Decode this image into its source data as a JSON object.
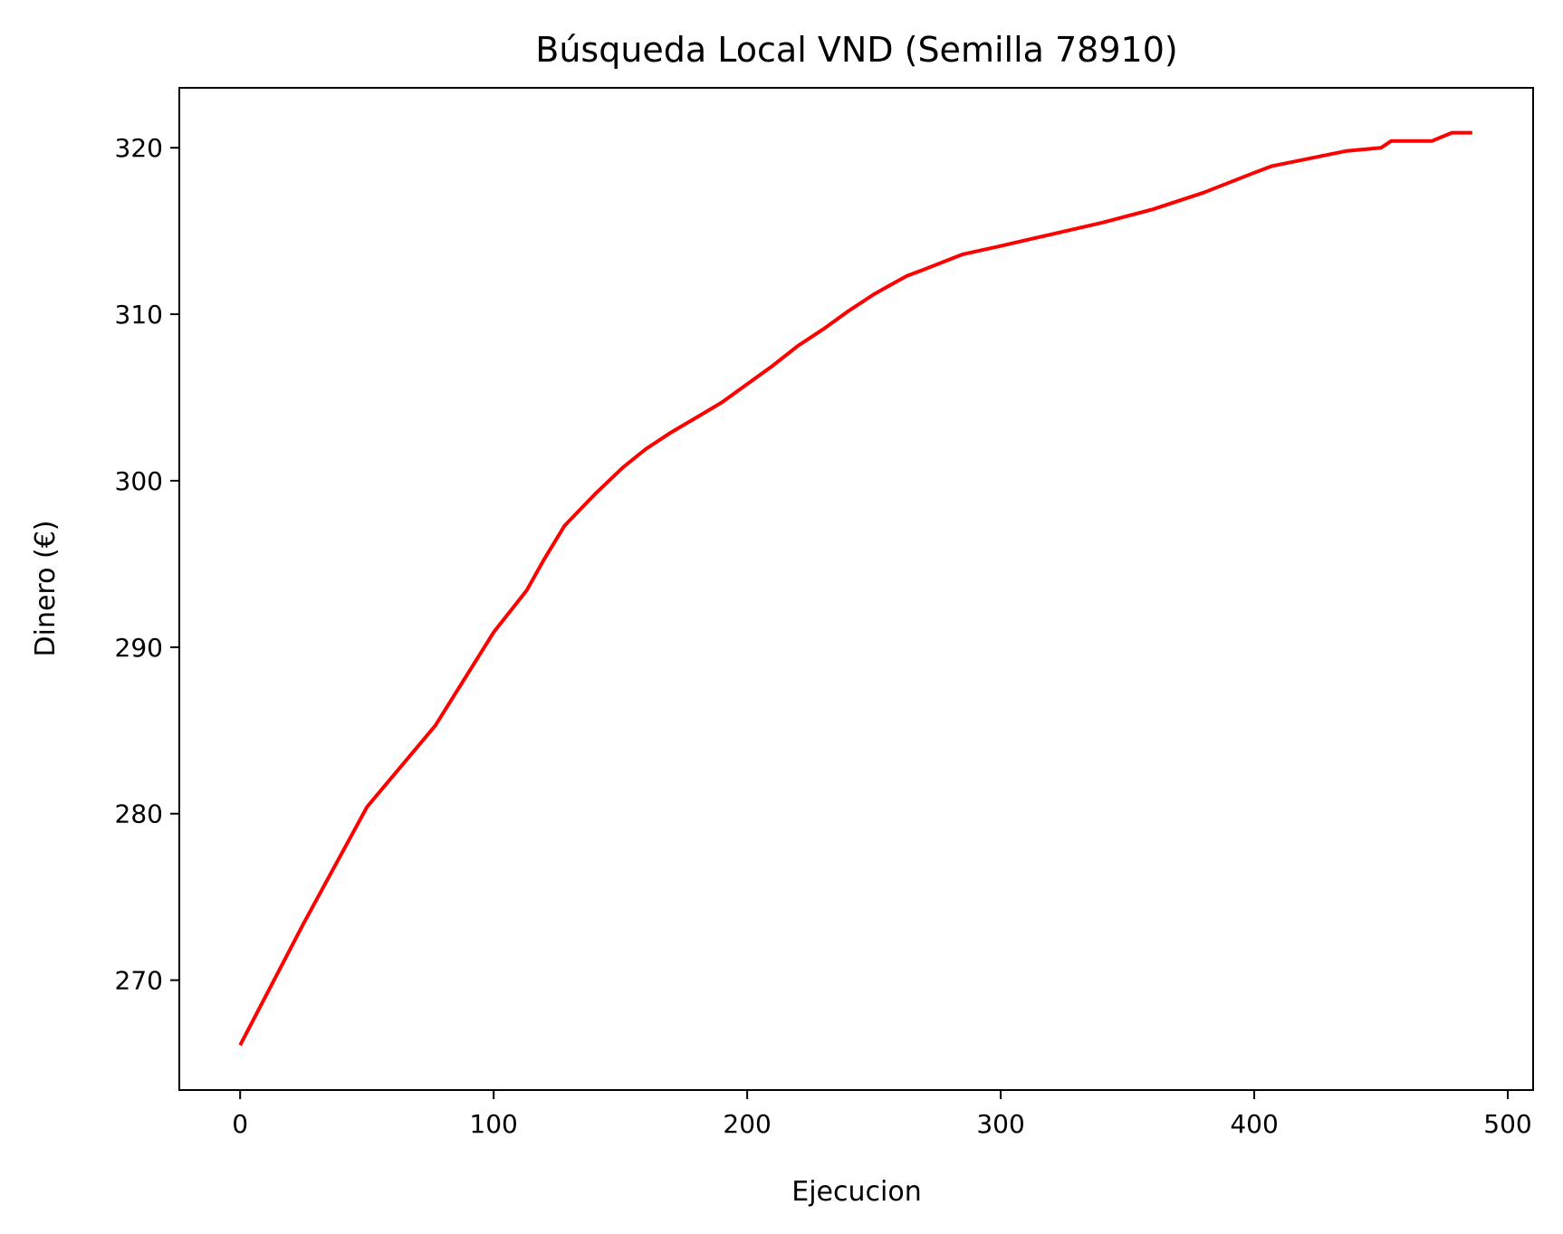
{
  "chart_data": {
    "type": "line",
    "title": "Búsqueda Local VND (Semilla 78910)",
    "xlabel": "Ejecucion",
    "ylabel": "Dinero (€)",
    "xlim": [
      -24,
      510
    ],
    "ylim": [
      263.4,
      323.6
    ],
    "xticks": [
      0,
      100,
      200,
      300,
      400,
      500
    ],
    "yticks": [
      270,
      280,
      290,
      300,
      310,
      320
    ],
    "grid": false,
    "series": [
      {
        "color": "#ff0000",
        "x": [
          0,
          25,
          50,
          77,
          100,
          113,
          120,
          128,
          140,
          151,
          160,
          170,
          180,
          190,
          200,
          210,
          220,
          230,
          240,
          250,
          257,
          263,
          270,
          285,
          300,
          320,
          340,
          360,
          380,
          400,
          407,
          420,
          436,
          450,
          454,
          460,
          470,
          478,
          486
        ],
        "y": [
          266.1,
          273.4,
          280.4,
          285.3,
          290.9,
          293.4,
          295.3,
          297.3,
          299.2,
          300.8,
          301.9,
          302.9,
          303.8,
          304.7,
          305.8,
          306.9,
          308.1,
          309.1,
          310.2,
          311.2,
          311.8,
          312.3,
          312.7,
          313.6,
          314.1,
          314.8,
          315.5,
          316.3,
          317.3,
          318.5,
          318.9,
          319.3,
          319.8,
          320.0,
          320.4,
          320.4,
          320.4,
          320.9,
          320.9
        ]
      }
    ]
  }
}
